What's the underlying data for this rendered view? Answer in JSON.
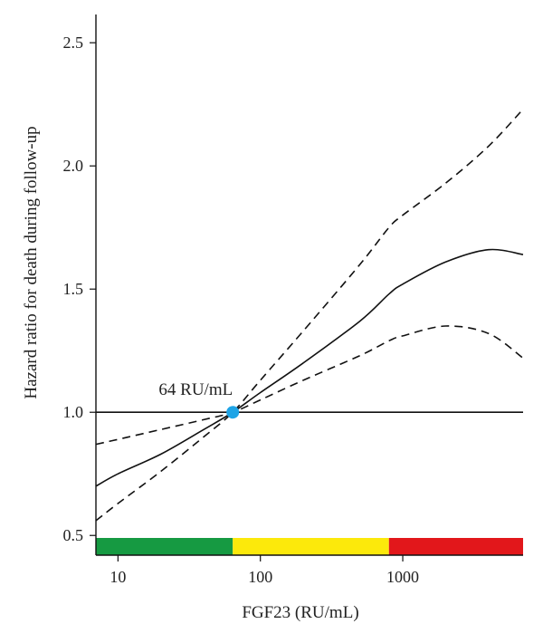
{
  "chart_data": {
    "type": "line",
    "xlabel": "FGF23 (RU/mL)",
    "ylabel": "Hazard ratio for death during follow-up",
    "x_scale": "log",
    "xlim": [
      7,
      7000
    ],
    "ylim": [
      0.42,
      2.6
    ],
    "x_ticks": [
      10,
      100,
      1000
    ],
    "x_tick_labels": [
      "10",
      "100",
      "1000"
    ],
    "y_ticks": [
      0.5,
      1.0,
      1.5,
      2.0,
      2.5
    ],
    "y_tick_labels": [
      "0.5",
      "1.0",
      "1.5",
      "2.0",
      "2.5"
    ],
    "reference_line": 1.0,
    "series": [
      {
        "style": "solid",
        "x": [
          7,
          10,
          20,
          40,
          64,
          100,
          200,
          500,
          800,
          1000,
          2000,
          4000,
          7000
        ],
        "y": [
          0.7,
          0.75,
          0.83,
          0.93,
          1.0,
          1.08,
          1.2,
          1.37,
          1.48,
          1.52,
          1.61,
          1.66,
          1.64
        ]
      },
      {
        "style": "dashed",
        "x": [
          7,
          10,
          20,
          40,
          64,
          100,
          200,
          500,
          800,
          1000,
          2000,
          4000,
          7000
        ],
        "y": [
          0.56,
          0.63,
          0.76,
          0.9,
          1.0,
          1.13,
          1.33,
          1.6,
          1.75,
          1.8,
          1.93,
          2.08,
          2.23
        ]
      },
      {
        "style": "dashed",
        "x": [
          7,
          10,
          20,
          40,
          64,
          100,
          200,
          500,
          800,
          1000,
          2000,
          4000,
          7000
        ],
        "y": [
          0.87,
          0.89,
          0.93,
          0.97,
          1.0,
          1.05,
          1.13,
          1.23,
          1.29,
          1.31,
          1.35,
          1.32,
          1.22
        ]
      }
    ],
    "marker": {
      "x": 64,
      "y": 1.0,
      "label": "64 RU/mL",
      "color": "#1ea4e6"
    },
    "bands": [
      {
        "from": 7,
        "to": 64,
        "color": "#169a42"
      },
      {
        "from": 64,
        "to": 800,
        "color": "#fce90b"
      },
      {
        "from": 800,
        "to": 7000,
        "color": "#e2171b"
      }
    ]
  }
}
